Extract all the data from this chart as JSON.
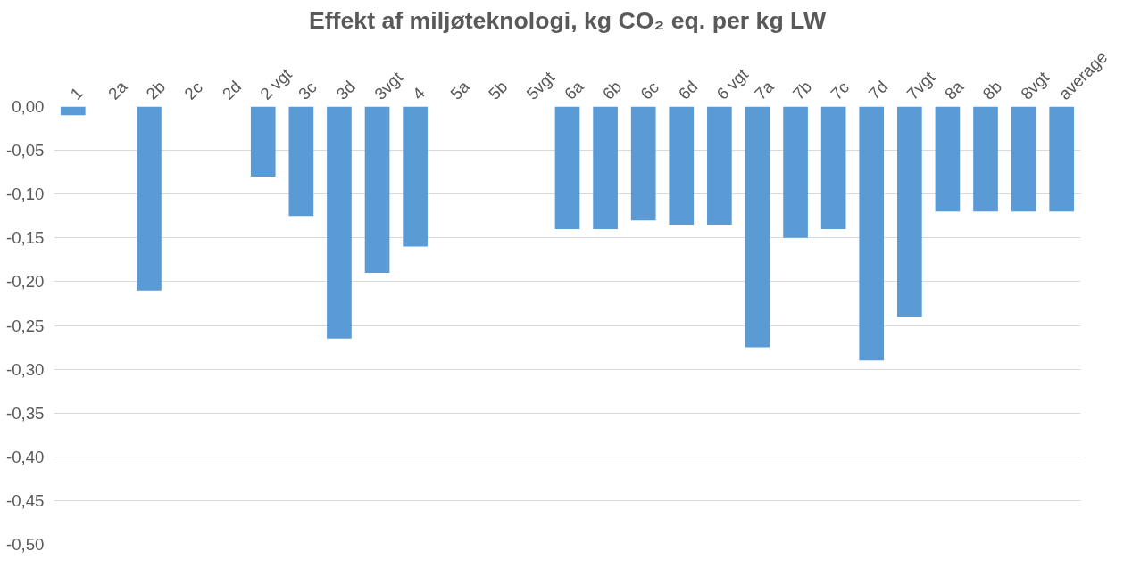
{
  "chart_data": {
    "type": "bar",
    "title": "Effekt af miljøteknologi, kg CO₂ eq. per kg LW",
    "categories": [
      "1",
      "2a",
      "2b",
      "2c",
      "2d",
      "2 vgt",
      "3c",
      "3d",
      "3vgt",
      "4",
      "5a",
      "5b",
      "5vgt",
      "6a",
      "6b",
      "6c",
      "6d",
      "6 vgt",
      "7a",
      "7b",
      "7c",
      "7d",
      "7vgt",
      "8a",
      "8b",
      "8vgt",
      "average"
    ],
    "values": [
      -0.01,
      null,
      -0.21,
      null,
      null,
      -0.08,
      -0.125,
      -0.265,
      -0.19,
      -0.16,
      null,
      null,
      null,
      -0.14,
      -0.14,
      -0.13,
      -0.135,
      -0.135,
      -0.275,
      -0.15,
      -0.14,
      -0.29,
      -0.24,
      -0.12,
      -0.12,
      -0.12,
      -0.12
    ],
    "color": "#5b9bd5",
    "ylim": [
      -0.5,
      0
    ],
    "yticks": [
      {
        "value": 0,
        "label": "0,00"
      },
      {
        "value": -0.05,
        "label": "-0,05"
      },
      {
        "value": -0.1,
        "label": "-0,10"
      },
      {
        "value": -0.15,
        "label": "-0,15"
      },
      {
        "value": -0.2,
        "label": "-0,20"
      },
      {
        "value": -0.25,
        "label": "-0,25"
      },
      {
        "value": -0.3,
        "label": "-0,30"
      },
      {
        "value": -0.35,
        "label": "-0,35"
      },
      {
        "value": -0.4,
        "label": "-0,40"
      },
      {
        "value": -0.45,
        "label": "-0,45"
      },
      {
        "value": -0.5,
        "label": "-0,50"
      }
    ],
    "grid": "y"
  }
}
